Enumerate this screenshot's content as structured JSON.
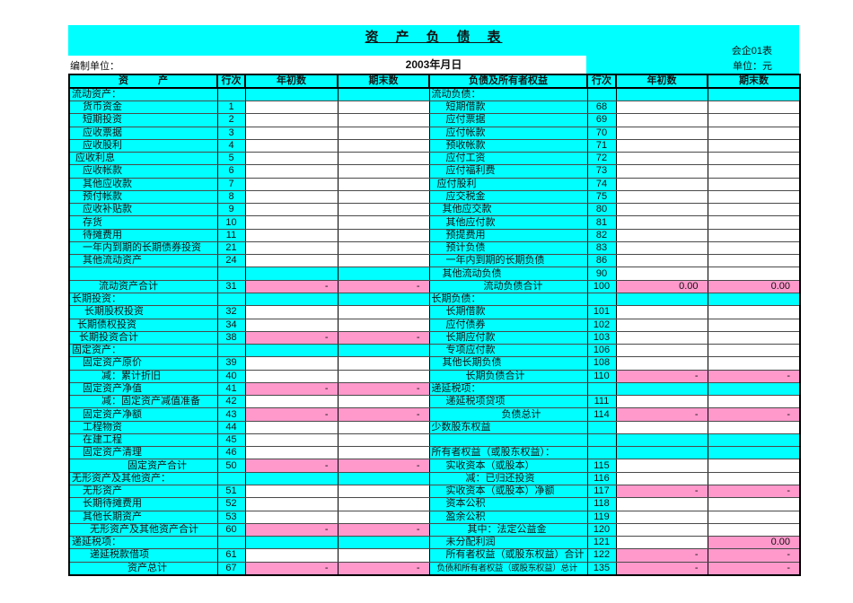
{
  "header": {
    "title": "资　产　负　债　表",
    "form_code": "会企01表",
    "unit_label": "单位：元",
    "prepared_by_label": "编制单位：",
    "date": "2003年月日"
  },
  "colors": {
    "cyan": "#00ffff",
    "pink": "#ff99cc"
  },
  "table": {
    "columns": [
      "资　　　产",
      "行次",
      "年初数",
      "期末数",
      "负债及所有者权益",
      "行次",
      "年初数",
      "期末数"
    ],
    "rows": [
      {
        "a": {
          "n": "流动资产：",
          "i": 2,
          "r": "",
          "c1": "c",
          "v1": "",
          "c2": "c",
          "v2": ""
        },
        "l": {
          "n": "流动负债：",
          "i": 2,
          "r": "",
          "c1": "c",
          "v1": "",
          "c2": "c",
          "v2": ""
        }
      },
      {
        "a": {
          "n": "货币资金",
          "i": 14,
          "r": "1",
          "c1": "w",
          "v1": "",
          "c2": "w",
          "v2": ""
        },
        "l": {
          "n": "短期借款",
          "i": 18,
          "r": "68",
          "c1": "w",
          "v1": "",
          "c2": "w",
          "v2": ""
        }
      },
      {
        "a": {
          "n": "短期投资",
          "i": 14,
          "r": "2",
          "c1": "w",
          "v1": "",
          "c2": "w",
          "v2": ""
        },
        "l": {
          "n": "应付票据",
          "i": 18,
          "r": "69",
          "c1": "w",
          "v1": "",
          "c2": "w",
          "v2": ""
        }
      },
      {
        "a": {
          "n": "应收票据",
          "i": 14,
          "r": "3",
          "c1": "w",
          "v1": "",
          "c2": "w",
          "v2": ""
        },
        "l": {
          "n": "应付帐款",
          "i": 18,
          "r": "70",
          "c1": "w",
          "v1": "",
          "c2": "w",
          "v2": ""
        }
      },
      {
        "a": {
          "n": "应收股利",
          "i": 14,
          "r": "4",
          "c1": "w",
          "v1": "",
          "c2": "w",
          "v2": ""
        },
        "l": {
          "n": "预收帐款",
          "i": 18,
          "r": "71",
          "c1": "w",
          "v1": "",
          "c2": "w",
          "v2": ""
        }
      },
      {
        "a": {
          "n": "应收利息",
          "i": 6,
          "r": "5",
          "c1": "w",
          "v1": "",
          "c2": "w",
          "v2": ""
        },
        "l": {
          "n": "应付工资",
          "i": 18,
          "r": "72",
          "c1": "w",
          "v1": "",
          "c2": "w",
          "v2": ""
        }
      },
      {
        "a": {
          "n": "应收帐款",
          "i": 14,
          "r": "6",
          "c1": "w",
          "v1": "",
          "c2": "w",
          "v2": ""
        },
        "l": {
          "n": "应付福利费",
          "i": 18,
          "r": "73",
          "c1": "w",
          "v1": "",
          "c2": "w",
          "v2": ""
        }
      },
      {
        "a": {
          "n": "其他应收款",
          "i": 14,
          "r": "7",
          "c1": "w",
          "v1": "",
          "c2": "w",
          "v2": ""
        },
        "l": {
          "n": "应付股利",
          "i": 8,
          "r": "74",
          "c1": "w",
          "v1": "",
          "c2": "w",
          "v2": ""
        }
      },
      {
        "a": {
          "n": "预付帐款",
          "i": 14,
          "r": "8",
          "c1": "w",
          "v1": "",
          "c2": "w",
          "v2": ""
        },
        "l": {
          "n": "应交税金",
          "i": 18,
          "r": "75",
          "c1": "w",
          "v1": "",
          "c2": "w",
          "v2": ""
        }
      },
      {
        "a": {
          "n": "应收补贴款",
          "i": 14,
          "r": "9",
          "c1": "w",
          "v1": "",
          "c2": "w",
          "v2": ""
        },
        "l": {
          "n": "其他应交款",
          "i": 14,
          "r": "80",
          "c1": "w",
          "v1": "",
          "c2": "w",
          "v2": ""
        }
      },
      {
        "a": {
          "n": "存货",
          "i": 14,
          "r": "10",
          "c1": "w",
          "v1": "",
          "c2": "w",
          "v2": ""
        },
        "l": {
          "n": "其他应付款",
          "i": 18,
          "r": "81",
          "c1": "w",
          "v1": "",
          "c2": "w",
          "v2": ""
        }
      },
      {
        "a": {
          "n": "待摊费用",
          "i": 14,
          "r": "11",
          "c1": "w",
          "v1": "",
          "c2": "w",
          "v2": ""
        },
        "l": {
          "n": "预提费用",
          "i": 18,
          "r": "82",
          "c1": "w",
          "v1": "",
          "c2": "w",
          "v2": ""
        }
      },
      {
        "a": {
          "n": "一年内到期的长期债券投资",
          "i": 14,
          "r": "21",
          "c1": "w",
          "v1": "",
          "c2": "w",
          "v2": ""
        },
        "l": {
          "n": "预计负债",
          "i": 18,
          "r": "83",
          "c1": "w",
          "v1": "",
          "c2": "w",
          "v2": ""
        }
      },
      {
        "a": {
          "n": "其他流动资产",
          "i": 14,
          "r": "24",
          "c1": "w",
          "v1": "",
          "c2": "w",
          "v2": ""
        },
        "l": {
          "n": "一年内到期的长期负债",
          "i": 18,
          "r": "86",
          "c1": "w",
          "v1": "",
          "c2": "w",
          "v2": ""
        }
      },
      {
        "a": {
          "n": "",
          "i": 0,
          "r": "",
          "c1": "c",
          "v1": "",
          "c2": "c",
          "v2": ""
        },
        "l": {
          "n": "其他流动负债",
          "i": 14,
          "r": "90",
          "c1": "w",
          "v1": "",
          "c2": "w",
          "v2": ""
        }
      },
      {
        "a": {
          "n": "流动资产合计",
          "i": 32,
          "r": "31",
          "c1": "p",
          "v1": "-",
          "c2": "p",
          "v2": "-"
        },
        "l": {
          "n": "流动负债合计",
          "i": 60,
          "r": "100",
          "c1": "p",
          "v1": "0.00",
          "c2": "p",
          "v2": "0.00"
        }
      },
      {
        "a": {
          "n": "长期投资：",
          "i": 2,
          "r": "",
          "c1": "c",
          "v1": "",
          "c2": "c",
          "v2": ""
        },
        "l": {
          "n": "长期负债：",
          "i": 2,
          "r": "",
          "c1": "c",
          "v1": "",
          "c2": "c",
          "v2": ""
        }
      },
      {
        "a": {
          "n": "长期股权投资",
          "i": 16,
          "r": "32",
          "c1": "w",
          "v1": "",
          "c2": "w",
          "v2": ""
        },
        "l": {
          "n": "长期借款",
          "i": 18,
          "r": "101",
          "c1": "w",
          "v1": "",
          "c2": "w",
          "v2": ""
        }
      },
      {
        "a": {
          "n": "长期债权投资",
          "i": 8,
          "r": "34",
          "c1": "w",
          "v1": "",
          "c2": "w",
          "v2": ""
        },
        "l": {
          "n": "应付债券",
          "i": 18,
          "r": "102",
          "c1": "w",
          "v1": "",
          "c2": "w",
          "v2": ""
        }
      },
      {
        "a": {
          "n": "长期投资合计",
          "i": 10,
          "r": "38",
          "c1": "p",
          "v1": "-",
          "c2": "p",
          "v2": "-"
        },
        "l": {
          "n": "长期应付款",
          "i": 18,
          "r": "103",
          "c1": "w",
          "v1": "",
          "c2": "w",
          "v2": ""
        }
      },
      {
        "a": {
          "n": "固定资产：",
          "i": 2,
          "r": "",
          "c1": "c",
          "v1": "",
          "c2": "c",
          "v2": ""
        },
        "l": {
          "n": "专项应付款",
          "i": 18,
          "r": "106",
          "c1": "w",
          "v1": "",
          "c2": "w",
          "v2": ""
        }
      },
      {
        "a": {
          "n": "固定资产原价",
          "i": 14,
          "r": "39",
          "c1": "w",
          "v1": "",
          "c2": "w",
          "v2": ""
        },
        "l": {
          "n": "其他长期负债",
          "i": 14,
          "r": "108",
          "c1": "w",
          "v1": "",
          "c2": "w",
          "v2": ""
        }
      },
      {
        "a": {
          "n": "减：累计折旧",
          "i": 35,
          "r": "40",
          "c1": "w",
          "v1": "",
          "c2": "w",
          "v2": ""
        },
        "l": {
          "n": "长期负债合计",
          "i": 40,
          "r": "110",
          "c1": "p",
          "v1": "-",
          "c2": "p",
          "v2": "-"
        }
      },
      {
        "a": {
          "n": "固定资产净值",
          "i": 14,
          "r": "41",
          "c1": "p",
          "v1": "-",
          "c2": "p",
          "v2": "-"
        },
        "l": {
          "n": "递延税项：",
          "i": 2,
          "r": "",
          "c1": "c",
          "v1": "",
          "c2": "c",
          "v2": ""
        }
      },
      {
        "a": {
          "n": "减：固定资产减值准备",
          "i": 35,
          "r": "42",
          "c1": "w",
          "v1": "",
          "c2": "w",
          "v2": ""
        },
        "l": {
          "n": "递延税项贷项",
          "i": 18,
          "r": "111",
          "c1": "w",
          "v1": "",
          "c2": "w",
          "v2": ""
        }
      },
      {
        "a": {
          "n": "固定资产净额",
          "i": 14,
          "r": "43",
          "c1": "p",
          "v1": "-",
          "c2": "p",
          "v2": "-"
        },
        "l": {
          "n": "负债总计",
          "i": 80,
          "r": "114",
          "c1": "p",
          "v1": "-",
          "c2": "p",
          "v2": "-"
        }
      },
      {
        "a": {
          "n": "工程物资",
          "i": 14,
          "r": "44",
          "c1": "w",
          "v1": "",
          "c2": "w",
          "v2": ""
        },
        "l": {
          "n": "少数股东权益",
          "i": 2,
          "r": "",
          "c1": "w",
          "v1": "",
          "c2": "w",
          "v2": ""
        }
      },
      {
        "a": {
          "n": "在建工程",
          "i": 14,
          "r": "45",
          "c1": "w",
          "v1": "",
          "c2": "w",
          "v2": ""
        },
        "l": {
          "n": "",
          "i": 0,
          "r": "",
          "c1": "c",
          "v1": "",
          "c2": "c",
          "v2": ""
        }
      },
      {
        "a": {
          "n": "固定资产清理",
          "i": 14,
          "r": "46",
          "c1": "w",
          "v1": "",
          "c2": "w",
          "v2": ""
        },
        "l": {
          "n": "所有者权益（或股东权益）：",
          "i": 2,
          "r": "",
          "c1": "c",
          "v1": "",
          "c2": "c",
          "v2": ""
        }
      },
      {
        "a": {
          "n": "固定资产合计",
          "i": 64,
          "r": "50",
          "c1": "p",
          "v1": "-",
          "c2": "p",
          "v2": "-"
        },
        "l": {
          "n": "实收资本（或股本）",
          "i": 18,
          "r": "115",
          "c1": "w",
          "v1": "",
          "c2": "w",
          "v2": ""
        }
      },
      {
        "a": {
          "n": "无形资产及其他资产：",
          "i": 2,
          "r": "",
          "c1": "c",
          "v1": "",
          "c2": "c",
          "v2": ""
        },
        "l": {
          "n": "减：已归还投资",
          "i": 40,
          "r": "116",
          "c1": "w",
          "v1": "",
          "c2": "w",
          "v2": ""
        }
      },
      {
        "a": {
          "n": "无形资产",
          "i": 14,
          "r": "51",
          "c1": "w",
          "v1": "",
          "c2": "w",
          "v2": ""
        },
        "l": {
          "n": "实收资本（或股本）净额",
          "i": 18,
          "r": "117",
          "c1": "p",
          "v1": "-",
          "c2": "p",
          "v2": "-"
        }
      },
      {
        "a": {
          "n": "长期待摊费用",
          "i": 14,
          "r": "52",
          "c1": "w",
          "v1": "",
          "c2": "w",
          "v2": ""
        },
        "l": {
          "n": "资本公积",
          "i": 18,
          "r": "118",
          "c1": "w",
          "v1": "",
          "c2": "w",
          "v2": ""
        }
      },
      {
        "a": {
          "n": "其他长期资产",
          "i": 14,
          "r": "53",
          "c1": "w",
          "v1": "",
          "c2": "w",
          "v2": ""
        },
        "l": {
          "n": "盈余公积",
          "i": 18,
          "r": "119",
          "c1": "w",
          "v1": "",
          "c2": "w",
          "v2": ""
        }
      },
      {
        "a": {
          "n": "无形资产及其他资产合计",
          "i": 22,
          "r": "60",
          "c1": "p",
          "v1": "-",
          "c2": "p",
          "v2": "-"
        },
        "l": {
          "n": "其中：法定公益金",
          "i": 42,
          "r": "120",
          "c1": "w",
          "v1": "",
          "c2": "w",
          "v2": ""
        }
      },
      {
        "a": {
          "n": "递延税项：",
          "i": 2,
          "r": "",
          "c1": "c",
          "v1": "",
          "c2": "c",
          "v2": ""
        },
        "l": {
          "n": "未分配利润",
          "i": 18,
          "r": "121",
          "c1": "w",
          "v1": "",
          "c2": "p",
          "v2": "0.00"
        }
      },
      {
        "a": {
          "n": "递延税款借项",
          "i": 22,
          "r": "61",
          "c1": "w",
          "v1": "",
          "c2": "w",
          "v2": ""
        },
        "l": {
          "n": "所有者权益（或股东权益）合计",
          "i": 18,
          "r": "122",
          "c1": "p",
          "v1": "-",
          "c2": "p",
          "v2": "-"
        }
      },
      {
        "a": {
          "n": "资产总计",
          "i": 64,
          "r": "67",
          "c1": "p",
          "v1": "-",
          "c2": "p",
          "v2": "-"
        },
        "l": {
          "n": "负债和所有者权益（或股东权益）总计",
          "i": 8,
          "r": "135",
          "c1": "p",
          "v1": "-",
          "c2": "p",
          "v2": "-"
        }
      }
    ]
  }
}
